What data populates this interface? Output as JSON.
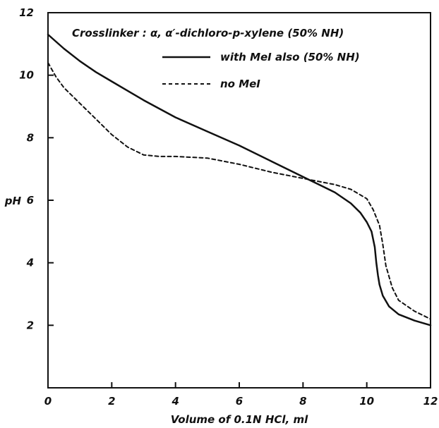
{
  "chart_data": {
    "type": "line",
    "title": "Crosslinker : α, α′-dichloro-p-xylene (50% NH)",
    "xlabel": "Volume of 0.1N HCl, ml",
    "ylabel": "pH",
    "xlim": [
      0,
      12
    ],
    "ylim": [
      0,
      12
    ],
    "xticks": [
      0,
      2,
      4,
      6,
      8,
      10,
      12
    ],
    "yticks": [
      2,
      4,
      6,
      8,
      10,
      12
    ],
    "grid": false,
    "legend_position": "top",
    "series": [
      {
        "name": "with MeI also (50% NH)",
        "style": "solid",
        "color": "#111111",
        "x": [
          0,
          0.5,
          1,
          1.5,
          2,
          3,
          4,
          5,
          6,
          7,
          8,
          8.5,
          9,
          9.5,
          9.8,
          10.0,
          10.15,
          10.25,
          10.3,
          10.35,
          10.4,
          10.5,
          10.7,
          11.0,
          11.5,
          12.0
        ],
        "y": [
          11.3,
          10.85,
          10.45,
          10.1,
          9.8,
          9.2,
          8.65,
          8.2,
          7.75,
          7.25,
          6.75,
          6.5,
          6.25,
          5.9,
          5.6,
          5.3,
          5.0,
          4.5,
          4.0,
          3.6,
          3.3,
          2.95,
          2.6,
          2.35,
          2.15,
          2.0
        ]
      },
      {
        "name": "no MeI",
        "style": "dashed",
        "color": "#111111",
        "x": [
          0,
          0.25,
          0.5,
          1,
          1.5,
          2,
          2.5,
          3,
          3.5,
          4,
          5,
          6,
          7,
          8,
          8.5,
          9,
          9.5,
          10,
          10.2,
          10.4,
          10.5,
          10.6,
          10.8,
          11.0,
          11.5,
          12.0
        ],
        "y": [
          10.4,
          9.95,
          9.6,
          9.1,
          8.6,
          8.1,
          7.7,
          7.45,
          7.4,
          7.4,
          7.35,
          7.15,
          6.9,
          6.7,
          6.6,
          6.5,
          6.35,
          6.05,
          5.7,
          5.2,
          4.6,
          3.9,
          3.2,
          2.8,
          2.45,
          2.2
        ]
      }
    ]
  }
}
